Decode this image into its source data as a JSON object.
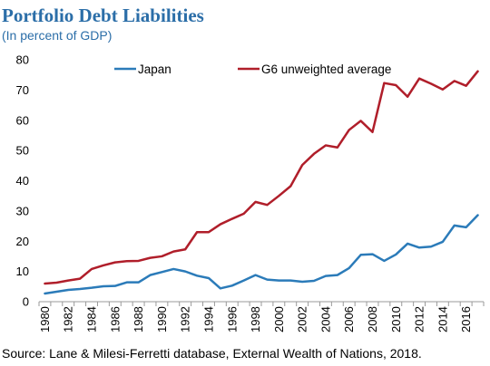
{
  "header": {
    "title": "Portfolio Debt Liabilities",
    "subtitle": "(In percent of GDP)"
  },
  "footer": {
    "source": "Source: Lane & Milesi-Ferretti database, External Wealth of Nations, 2018."
  },
  "colors": {
    "title": "#2b6ea8",
    "japan": "#2b7bb9",
    "g6": "#b01e2a",
    "axis": "#9a9a9a"
  },
  "chart_data": {
    "type": "line",
    "title": "Portfolio Debt Liabilities",
    "subtitle": "(In percent of GDP)",
    "xlabel": "",
    "ylabel": "",
    "ylim": [
      0,
      80
    ],
    "yticks": [
      0,
      10,
      20,
      30,
      40,
      50,
      60,
      70,
      80
    ],
    "xlim": [
      1980,
      2017
    ],
    "xtick_labels": [
      "1980",
      "1982",
      "1984",
      "1986",
      "1988",
      "1990",
      "1992",
      "1994",
      "1996",
      "1998",
      "2000",
      "2002",
      "2004",
      "2006",
      "2008",
      "2010",
      "2012",
      "2014",
      "2016"
    ],
    "x": [
      1980,
      1981,
      1982,
      1983,
      1984,
      1985,
      1986,
      1987,
      1988,
      1989,
      1990,
      1991,
      1992,
      1993,
      1994,
      1995,
      1996,
      1997,
      1998,
      1999,
      2000,
      2001,
      2002,
      2003,
      2004,
      2005,
      2006,
      2007,
      2008,
      2009,
      2010,
      2011,
      2012,
      2013,
      2014,
      2015,
      2016,
      2017
    ],
    "series": [
      {
        "name": "Japan",
        "color": "#2b7bb9",
        "values": [
          2.7,
          3.3,
          3.9,
          4.2,
          4.6,
          5.1,
          5.2,
          6.4,
          6.4,
          8.8,
          9.8,
          10.8,
          10.0,
          8.6,
          7.8,
          4.4,
          5.3,
          7.0,
          8.8,
          7.3,
          7.0,
          7.0,
          6.6,
          6.9,
          8.5,
          8.8,
          11.1,
          15.5,
          15.7,
          13.5,
          15.6,
          19.2,
          17.9,
          18.2,
          19.8,
          25.2,
          24.6,
          28.6
        ]
      },
      {
        "name": "G6 unweighted average",
        "color": "#b01e2a",
        "values": [
          6.0,
          6.3,
          7.0,
          7.6,
          10.8,
          12.0,
          13.0,
          13.4,
          13.5,
          14.5,
          15.0,
          16.6,
          17.3,
          23.0,
          23.0,
          25.6,
          27.4,
          29.1,
          33.0,
          32.0,
          35.0,
          38.2,
          45.2,
          48.9,
          51.7,
          51.0,
          56.8,
          59.8,
          56.1,
          72.3,
          71.6,
          67.8,
          73.8,
          72.1,
          70.2,
          73.0,
          71.4,
          76.2
        ]
      }
    ],
    "legend": "top, inside plot"
  }
}
